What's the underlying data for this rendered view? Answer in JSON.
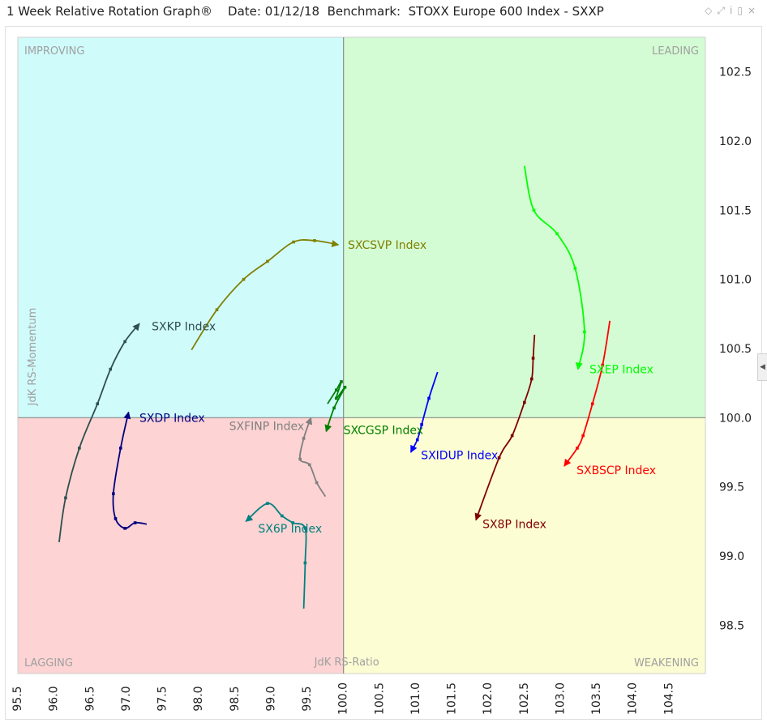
{
  "header": {
    "title": "1 Week Relative Rotation Graph®",
    "date": "Date: 01/12/18",
    "benchmark": "Benchmark:  STOXX Europe 600 Index - SXXP"
  },
  "window_icons": [
    "◇",
    "⤢",
    "i",
    "▯",
    "×"
  ],
  "chart_data": {
    "type": "scatter",
    "subtype": "relative-rotation-graph",
    "xlabel": "JdK RS-Ratio",
    "ylabel": "JdK RS-Momentum",
    "xlim": [
      95.5,
      105.0
    ],
    "ylim": [
      98.15,
      102.75
    ],
    "center": [
      100.0,
      100.0
    ],
    "x_ticks": [
      95.5,
      96.0,
      96.5,
      97.0,
      97.5,
      98.0,
      98.5,
      99.0,
      99.5,
      100.0,
      100.5,
      101.0,
      101.5,
      102.0,
      102.5,
      103.0,
      103.5,
      104.0,
      104.5
    ],
    "x_tick_labels": [
      "95.5",
      "96.0",
      "96.5",
      "97.0",
      "97.5",
      "98.0",
      "98.5",
      "99.0",
      "99.5",
      "100.0",
      "100.5",
      "101.0",
      "101.5",
      "102.0",
      "102.5",
      "103.0",
      "103.5",
      "104.0",
      "104.5"
    ],
    "y_ticks": [
      98.5,
      99.0,
      99.5,
      100.0,
      100.5,
      101.0,
      101.5,
      102.0,
      102.5
    ],
    "y_tick_labels": [
      "98.5",
      "99.0",
      "99.5",
      "100.0",
      "100.5",
      "101.0",
      "101.5",
      "102.0",
      "102.5"
    ],
    "quadrants": {
      "improving": {
        "label": "IMPROVING",
        "color": "#d0fbfb"
      },
      "leading": {
        "label": "LEADING",
        "color": "#d4fcd4"
      },
      "lagging": {
        "label": "LAGGING",
        "color": "#fdd3d3"
      },
      "weakening": {
        "label": "WEAKENING",
        "color": "#fdfdd3"
      }
    },
    "series": [
      {
        "name": "SXKP Index",
        "color": "#2f4f4f",
        "points": [
          [
            96.07,
            99.1
          ],
          [
            96.16,
            99.42
          ],
          [
            96.35,
            99.78
          ],
          [
            96.6,
            100.1
          ],
          [
            96.78,
            100.35
          ],
          [
            96.98,
            100.55
          ],
          [
            97.18,
            100.68
          ]
        ]
      },
      {
        "name": "SXCSVP Index",
        "color": "#808000",
        "points": [
          [
            97.9,
            100.49
          ],
          [
            98.25,
            100.78
          ],
          [
            98.62,
            101.0
          ],
          [
            98.95,
            101.13
          ],
          [
            99.31,
            101.27
          ],
          [
            99.6,
            101.28
          ],
          [
            99.93,
            101.25
          ]
        ]
      },
      {
        "name": "SXDP Index",
        "color": "#000080",
        "points": [
          [
            97.28,
            99.23
          ],
          [
            97.12,
            99.24
          ],
          [
            96.98,
            99.2
          ],
          [
            96.85,
            99.27
          ],
          [
            96.82,
            99.45
          ],
          [
            96.92,
            99.78
          ],
          [
            97.03,
            100.04
          ]
        ]
      },
      {
        "name": "SXFINP Index",
        "color": "#808080",
        "points": [
          [
            99.75,
            99.43
          ],
          [
            99.63,
            99.53
          ],
          [
            99.53,
            99.66
          ],
          [
            99.4,
            99.7
          ],
          [
            99.45,
            99.85
          ],
          [
            99.55,
            100.0
          ]
        ]
      },
      {
        "name": "SX6P Index",
        "color": "#008080",
        "points": [
          [
            99.45,
            98.62
          ],
          [
            99.47,
            98.95
          ],
          [
            99.47,
            99.2
          ],
          [
            99.3,
            99.24
          ],
          [
            99.15,
            99.29
          ],
          [
            98.95,
            99.38
          ],
          [
            98.65,
            99.25
          ]
        ]
      },
      {
        "name": "SXCGSP Index",
        "color": "#008000",
        "points": [
          [
            99.78,
            100.1
          ],
          [
            99.9,
            100.2
          ],
          [
            99.97,
            100.26
          ],
          [
            99.9,
            100.14
          ],
          [
            100.02,
            100.22
          ],
          [
            99.87,
            100.07
          ],
          [
            99.76,
            99.9
          ]
        ]
      },
      {
        "name": "SXIDUP Index",
        "color": "#0000ff",
        "points": [
          [
            101.3,
            100.33
          ],
          [
            101.18,
            100.14
          ],
          [
            101.08,
            99.95
          ],
          [
            101.02,
            99.84
          ],
          [
            100.93,
            99.75
          ]
        ]
      },
      {
        "name": "SX8P Index",
        "color": "#800000",
        "points": [
          [
            102.64,
            100.6
          ],
          [
            102.62,
            100.43
          ],
          [
            102.6,
            100.28
          ],
          [
            102.5,
            100.11
          ],
          [
            102.33,
            99.87
          ],
          [
            102.15,
            99.71
          ],
          [
            101.83,
            99.26
          ]
        ]
      },
      {
        "name": "SXEP Index",
        "color": "#00ff00",
        "points": [
          [
            102.5,
            101.82
          ],
          [
            102.63,
            101.5
          ],
          [
            102.95,
            101.33
          ],
          [
            103.2,
            101.08
          ],
          [
            103.33,
            100.62
          ],
          [
            103.24,
            100.35
          ]
        ]
      },
      {
        "name": "SXBSCP Index",
        "color": "#ff0000",
        "points": [
          [
            103.68,
            100.7
          ],
          [
            103.58,
            100.38
          ],
          [
            103.44,
            100.1
          ],
          [
            103.31,
            99.87
          ],
          [
            103.23,
            99.78
          ],
          [
            103.05,
            99.65
          ]
        ]
      }
    ],
    "labels": [
      {
        "text": "SXKP Index",
        "color": "#2f4f4f",
        "x": 97.35,
        "y": 100.66
      },
      {
        "text": "SXCSVP Index",
        "color": "#808000",
        "x": 100.06,
        "y": 101.25
      },
      {
        "text": "SXDP Index",
        "color": "#000080",
        "x": 97.18,
        "y": 100.0
      },
      {
        "text": "SXFINP Index",
        "color": "#808080",
        "x": 98.42,
        "y": 99.94
      },
      {
        "text": "SX6P Index",
        "color": "#008080",
        "x": 98.82,
        "y": 99.2
      },
      {
        "text": "SXCGSP Index",
        "color": "#008000",
        "x": 100.0,
        "y": 99.91
      },
      {
        "text": "SXIDUP Index",
        "color": "#0000ff",
        "x": 101.07,
        "y": 99.73
      },
      {
        "text": "SX8P Index",
        "color": "#800000",
        "x": 101.92,
        "y": 99.23
      },
      {
        "text": "SXEP Index",
        "color": "#00ff00",
        "x": 103.4,
        "y": 100.35
      },
      {
        "text": "SXBSCP Index",
        "color": "#ff0000",
        "x": 103.22,
        "y": 99.62
      }
    ]
  }
}
